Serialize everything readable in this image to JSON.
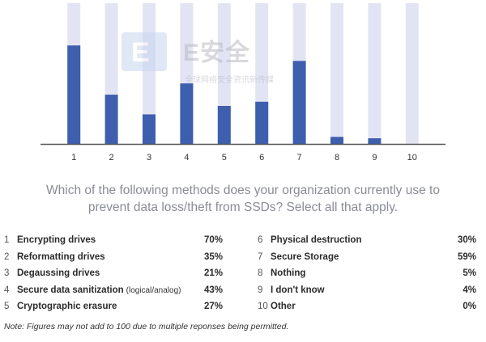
{
  "chart_data": {
    "type": "bar",
    "categories": [
      "1",
      "2",
      "3",
      "4",
      "5",
      "6",
      "7",
      "8",
      "9",
      "10"
    ],
    "values": [
      70,
      35,
      21,
      43,
      27,
      30,
      59,
      5,
      4,
      0
    ],
    "ylim": [
      0,
      100
    ],
    "colors": {
      "bar": "#3d5fae",
      "track": "#e3e4f3",
      "axis": "#555555"
    }
  },
  "question": {
    "line1": "Which of the following methods does your organization currently use to",
    "line2": "prevent data loss/theft from SSDs? Select all that apply."
  },
  "legend": {
    "left": [
      {
        "num": "1",
        "label": "Encrypting drives",
        "note": "",
        "pct": "70%"
      },
      {
        "num": "2",
        "label": "Reformatting drives",
        "note": "",
        "pct": "35%"
      },
      {
        "num": "3",
        "label": "Degaussing drives",
        "note": "",
        "pct": "21%"
      },
      {
        "num": "4",
        "label": "Secure data sanitization",
        "note": "(logical/analog)",
        "pct": "43%"
      },
      {
        "num": "5",
        "label": "Cryptographic erasure",
        "note": "",
        "pct": "27%"
      }
    ],
    "right": [
      {
        "num": "6",
        "label": "Physical destruction",
        "note": "",
        "pct": "30%"
      },
      {
        "num": "7",
        "label": "Secure Storage",
        "note": "",
        "pct": "59%"
      },
      {
        "num": "8",
        "label": "Nothing",
        "note": "",
        "pct": "5%"
      },
      {
        "num": "9",
        "label": "I don't know",
        "note": "",
        "pct": "4%"
      },
      {
        "num": "10",
        "label": " Other",
        "note": "",
        "pct": "0%"
      }
    ]
  },
  "footnote": "Note: Figures may not add to 100 due to multiple reponses being permitted.",
  "watermark": {
    "glyph": "E",
    "text": "E安全",
    "subtext": "全球网络安全资讯新传媒"
  }
}
